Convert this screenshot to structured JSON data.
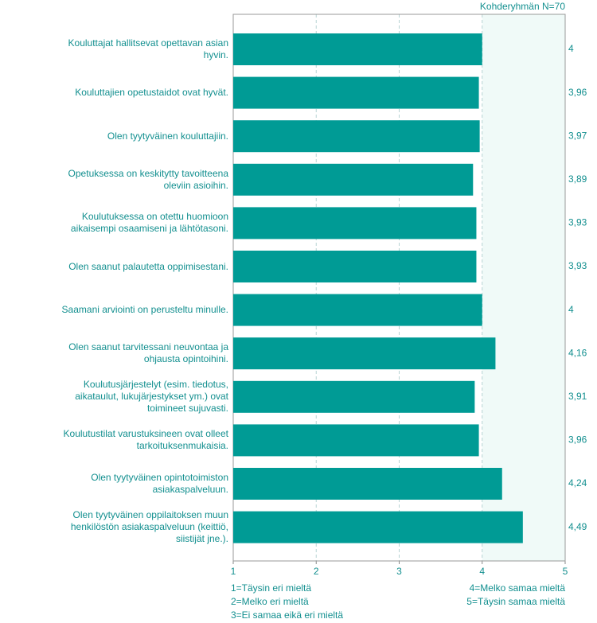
{
  "chart_data": {
    "type": "bar",
    "orientation": "horizontal",
    "title": "Kohderyhmän N=70",
    "categories": [
      "Kouluttajat hallitsevat opettavan asian hyvin.",
      "Kouluttajien opetustaidot ovat hyvät.",
      "Olen tyytyväinen kouluttajiin.",
      "Opetuksessa on keskitytty tavoitteena oleviin asioihin.",
      "Koulutuksessa on otettu huomioon aikaisempi osaamiseni ja lähtötasoni.",
      "Olen saanut palautetta oppimisestani.",
      "Saamani arviointi on perusteltu minulle.",
      "Olen saanut tarvitessani neuvontaa ja ohjausta opintoihini.",
      "Koulutusjärjestelyt (esim. tiedotus, aikataulut, lukujärjestykset ym.) ovat toimineet sujuvasti.",
      "Koulutustilat varustuksineen ovat olleet tarkoituksenmukaisia.",
      "Olen tyytyväinen opintotoimiston asiakaspalveluun.",
      "Olen tyytyväinen oppilaitoksen muun henkilöstön asiakaspalveluun (keittiö, siistijät jne.)."
    ],
    "values": [
      4,
      3.96,
      3.97,
      3.89,
      3.93,
      3.93,
      4,
      4.16,
      3.91,
      3.96,
      4.24,
      4.49
    ],
    "value_labels": [
      "4",
      "3,96",
      "3,97",
      "3,89",
      "3,93",
      "3,93",
      "4",
      "4,16",
      "3,91",
      "3,96",
      "4,24",
      "4,49"
    ],
    "color": "#009b95",
    "xlim": [
      1,
      5
    ],
    "xticks": [
      1,
      2,
      3,
      4,
      5
    ],
    "grid": true,
    "highlight_range": [
      4,
      5
    ],
    "scale_labels": [
      "1=Täysin eri mieltä",
      "2=Melko eri mieltä",
      "3=Ei samaa eikä eri mieltä",
      "4=Melko samaa mieltä",
      "5=Täysin samaa mieltä"
    ]
  }
}
